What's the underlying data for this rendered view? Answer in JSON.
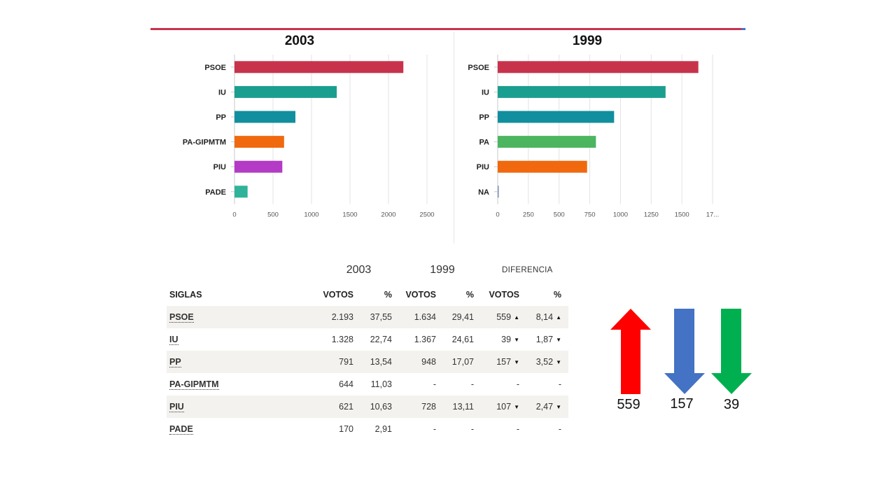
{
  "chart_data": [
    {
      "type": "bar",
      "orientation": "horizontal",
      "title": "2003",
      "categories": [
        "PSOE",
        "IU",
        "PP",
        "PA-GIPMTM",
        "PIU",
        "PADE"
      ],
      "values": [
        2193,
        1328,
        791,
        644,
        621,
        170
      ],
      "colors": [
        "#c8334c",
        "#1a9e8f",
        "#118f9e",
        "#f0690f",
        "#b33bc5",
        "#2fb39a"
      ],
      "xlim": [
        0,
        2500
      ],
      "xticks": [
        "0",
        "500",
        "1000",
        "1500",
        "2000",
        "2500"
      ],
      "grid": true
    },
    {
      "type": "bar",
      "orientation": "horizontal",
      "title": "1999",
      "categories": [
        "PSOE",
        "IU",
        "PP",
        "PA",
        "PIU",
        "NA"
      ],
      "values": [
        1634,
        1367,
        948,
        800,
        728,
        5
      ],
      "colors": [
        "#c8334c",
        "#1a9e8f",
        "#118f9e",
        "#4cb560",
        "#f0690f",
        "#7a8fb5"
      ],
      "xlim": [
        0,
        1750
      ],
      "xticks": [
        "0",
        "250",
        "500",
        "750",
        "1000",
        "1250",
        "1500",
        "17..."
      ],
      "grid": true
    }
  ],
  "table": {
    "year_a": "2003",
    "year_b": "1999",
    "diff_label": "DIFERENCIA",
    "headers": [
      "SIGLAS",
      "VOTOS",
      "%",
      "VOTOS",
      "%",
      "VOTOS",
      "%"
    ],
    "rows": [
      {
        "sigla": "PSOE",
        "votos_a": "2.193",
        "pct_a": "37,55",
        "votos_b": "1.634",
        "pct_b": "29,41",
        "dif_votos": "559",
        "dif_votos_dir": "up",
        "dif_pct": "8,14",
        "dif_pct_dir": "up"
      },
      {
        "sigla": "IU",
        "votos_a": "1.328",
        "pct_a": "22,74",
        "votos_b": "1.367",
        "pct_b": "24,61",
        "dif_votos": "39",
        "dif_votos_dir": "down",
        "dif_pct": "1,87",
        "dif_pct_dir": "down"
      },
      {
        "sigla": "PP",
        "votos_a": "791",
        "pct_a": "13,54",
        "votos_b": "948",
        "pct_b": "17,07",
        "dif_votos": "157",
        "dif_votos_dir": "down",
        "dif_pct": "3,52",
        "dif_pct_dir": "down"
      },
      {
        "sigla": "PA-GIPMTM",
        "votos_a": "644",
        "pct_a": "11,03",
        "votos_b": "-",
        "pct_b": "-",
        "dif_votos": "-",
        "dif_votos_dir": "",
        "dif_pct": "-",
        "dif_pct_dir": ""
      },
      {
        "sigla": "PIU",
        "votos_a": "621",
        "pct_a": "10,63",
        "votos_b": "728",
        "pct_b": "13,11",
        "dif_votos": "107",
        "dif_votos_dir": "down",
        "dif_pct": "2,47",
        "dif_pct_dir": "down"
      },
      {
        "sigla": "PADE",
        "votos_a": "170",
        "pct_a": "2,91",
        "votos_b": "-",
        "pct_b": "-",
        "dif_votos": "-",
        "dif_votos_dir": "",
        "dif_pct": "-",
        "dif_pct_dir": ""
      }
    ]
  },
  "arrows": [
    {
      "value": "559",
      "direction": "up",
      "color": "#ff0000"
    },
    {
      "value": "157",
      "direction": "down",
      "color": "#4472c4"
    },
    {
      "value": "39",
      "direction": "down",
      "color": "#00b050"
    }
  ],
  "colors": {
    "rule": "#c8334c"
  }
}
